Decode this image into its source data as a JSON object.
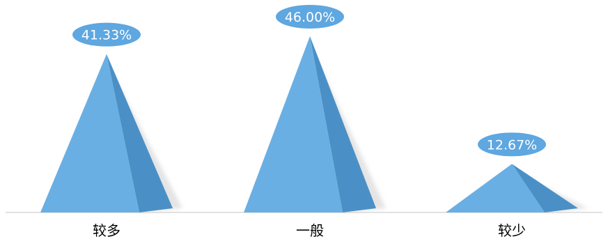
{
  "chart_data": {
    "type": "bar",
    "categories": [
      "较多",
      "一般",
      "较少"
    ],
    "values": [
      41.33,
      46.0,
      12.67
    ],
    "data_labels": [
      "41.33%",
      "46.00%",
      "12.67%"
    ],
    "title": "",
    "xlabel": "",
    "ylabel": "",
    "ylim": [
      0,
      50
    ],
    "grid": false,
    "legend": "none",
    "mark_shape": "pyramid"
  },
  "colors": {
    "front_face": "#6aafe3",
    "side_face": "#4a90c6",
    "label_bubble": "#5ea7e0",
    "baseline": "#d9d9d9",
    "shadow": "#cfcfcf"
  }
}
